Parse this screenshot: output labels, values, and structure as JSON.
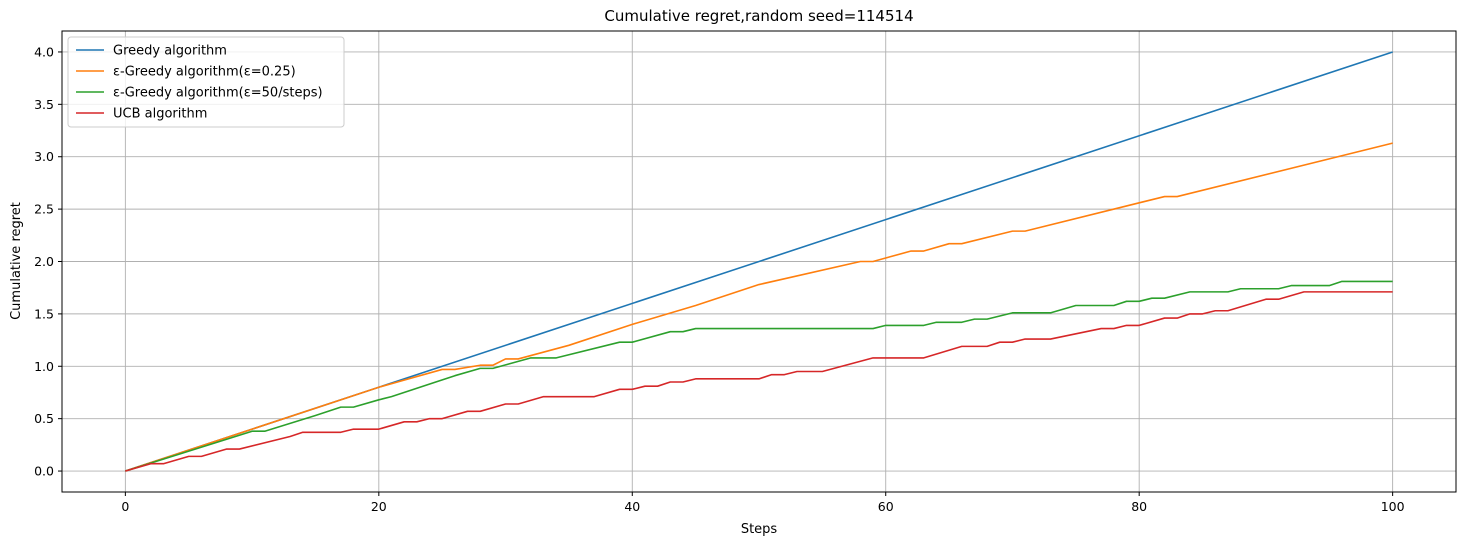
{
  "chart_data": {
    "type": "line",
    "title": "Cumulative regret,random seed=114514",
    "xlabel": "Steps",
    "ylabel": "Cumulative regret",
    "xlim": [
      -5,
      105
    ],
    "ylim": [
      -0.2,
      4.2
    ],
    "xticks": [
      0,
      20,
      40,
      60,
      80,
      100
    ],
    "yticks": [
      0.0,
      0.5,
      1.0,
      1.5,
      2.0,
      2.5,
      3.0,
      3.5,
      4.0
    ],
    "xtick_labels": [
      "0",
      "20",
      "40",
      "60",
      "80",
      "100"
    ],
    "ytick_labels": [
      "0.0",
      "0.5",
      "1.0",
      "1.5",
      "2.0",
      "2.5",
      "3.0",
      "3.5",
      "4.0"
    ],
    "grid": true,
    "legend_position": "top-left",
    "series": [
      {
        "name": "Greedy algorithm",
        "color": "#1f77b4",
        "points": [
          [
            0,
            0.0
          ],
          [
            100,
            4.0
          ]
        ]
      },
      {
        "name": "ε-Greedy algorithm(ε=0.25)",
        "color": "#ff7f0e",
        "points": [
          [
            0,
            0.0
          ],
          [
            10,
            0.4
          ],
          [
            20,
            0.8
          ],
          [
            25,
            0.97
          ],
          [
            26,
            0.97
          ],
          [
            28,
            1.01
          ],
          [
            29,
            1.01
          ],
          [
            30,
            1.07
          ],
          [
            31,
            1.07
          ],
          [
            35,
            1.2
          ],
          [
            40,
            1.4
          ],
          [
            45,
            1.58
          ],
          [
            50,
            1.78
          ],
          [
            58,
            2.0
          ],
          [
            59,
            2.0
          ],
          [
            62,
            2.1
          ],
          [
            63,
            2.1
          ],
          [
            65,
            2.17
          ],
          [
            66,
            2.17
          ],
          [
            70,
            2.29
          ],
          [
            71,
            2.29
          ],
          [
            82,
            2.62
          ],
          [
            83,
            2.62
          ],
          [
            100,
            3.13
          ]
        ]
      },
      {
        "name": "ε-Greedy algorithm(ε=50/steps)",
        "color": "#2ca02c",
        "points": [
          [
            0,
            0.0
          ],
          [
            10,
            0.38
          ],
          [
            11,
            0.38
          ],
          [
            15,
            0.53
          ],
          [
            17,
            0.61
          ],
          [
            18,
            0.61
          ],
          [
            20,
            0.68
          ],
          [
            21,
            0.71
          ],
          [
            26,
            0.91
          ],
          [
            28,
            0.98
          ],
          [
            29,
            0.98
          ],
          [
            32,
            1.08
          ],
          [
            34,
            1.08
          ],
          [
            39,
            1.23
          ],
          [
            40,
            1.23
          ],
          [
            43,
            1.33
          ],
          [
            44,
            1.33
          ],
          [
            45,
            1.36
          ],
          [
            59,
            1.36
          ],
          [
            60,
            1.39
          ],
          [
            63,
            1.39
          ],
          [
            64,
            1.42
          ],
          [
            66,
            1.42
          ],
          [
            67,
            1.45
          ],
          [
            68,
            1.45
          ],
          [
            70,
            1.51
          ],
          [
            73,
            1.51
          ],
          [
            75,
            1.58
          ],
          [
            78,
            1.58
          ],
          [
            79,
            1.62
          ],
          [
            80,
            1.62
          ],
          [
            81,
            1.65
          ],
          [
            82,
            1.65
          ],
          [
            84,
            1.71
          ],
          [
            87,
            1.71
          ],
          [
            88,
            1.74
          ],
          [
            91,
            1.74
          ],
          [
            92,
            1.77
          ],
          [
            95,
            1.77
          ],
          [
            96,
            1.81
          ],
          [
            100,
            1.81
          ]
        ]
      },
      {
        "name": "UCB algorithm",
        "color": "#d62728",
        "points": [
          [
            0,
            0.0
          ],
          [
            2,
            0.07
          ],
          [
            3,
            0.07
          ],
          [
            5,
            0.14
          ],
          [
            6,
            0.14
          ],
          [
            8,
            0.21
          ],
          [
            9,
            0.21
          ],
          [
            13,
            0.33
          ],
          [
            14,
            0.37
          ],
          [
            17,
            0.37
          ],
          [
            18,
            0.4
          ],
          [
            20,
            0.4
          ],
          [
            22,
            0.47
          ],
          [
            23,
            0.47
          ],
          [
            24,
            0.5
          ],
          [
            25,
            0.5
          ],
          [
            27,
            0.57
          ],
          [
            28,
            0.57
          ],
          [
            30,
            0.64
          ],
          [
            31,
            0.64
          ],
          [
            33,
            0.71
          ],
          [
            37,
            0.71
          ],
          [
            39,
            0.78
          ],
          [
            40,
            0.78
          ],
          [
            41,
            0.81
          ],
          [
            42,
            0.81
          ],
          [
            43,
            0.85
          ],
          [
            44,
            0.85
          ],
          [
            45,
            0.88
          ],
          [
            50,
            0.88
          ],
          [
            51,
            0.92
          ],
          [
            52,
            0.92
          ],
          [
            53,
            0.95
          ],
          [
            55,
            0.95
          ],
          [
            59,
            1.08
          ],
          [
            63,
            1.08
          ],
          [
            66,
            1.19
          ],
          [
            68,
            1.19
          ],
          [
            69,
            1.23
          ],
          [
            70,
            1.23
          ],
          [
            71,
            1.26
          ],
          [
            73,
            1.26
          ],
          [
            77,
            1.36
          ],
          [
            78,
            1.36
          ],
          [
            79,
            1.39
          ],
          [
            80,
            1.39
          ],
          [
            82,
            1.46
          ],
          [
            83,
            1.46
          ],
          [
            84,
            1.5
          ],
          [
            85,
            1.5
          ],
          [
            86,
            1.53
          ],
          [
            87,
            1.53
          ],
          [
            90,
            1.64
          ],
          [
            91,
            1.64
          ],
          [
            93,
            1.71
          ],
          [
            100,
            1.71
          ]
        ]
      }
    ]
  }
}
